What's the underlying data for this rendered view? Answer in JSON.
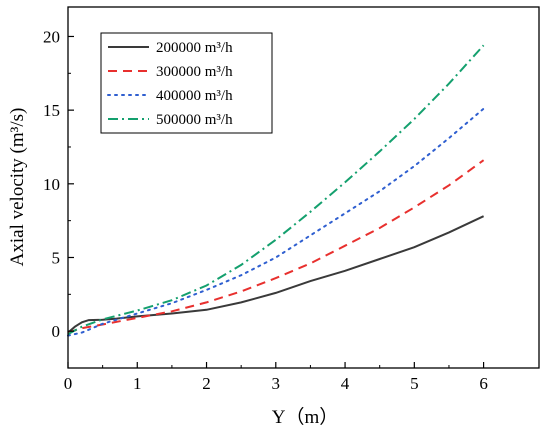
{
  "chart_data": {
    "type": "line",
    "title": "",
    "xlabel": "Y（m）",
    "ylabel": "Axial velocity (m³/s)",
    "xlim": [
      0,
      6.8
    ],
    "ylim": [
      -2.5,
      22
    ],
    "xticks": [
      "0",
      "1",
      "2",
      "3",
      "4",
      "5",
      "6"
    ],
    "yticks": [
      "0",
      "5",
      "10",
      "15",
      "20"
    ],
    "grid": false,
    "legend_position": "top-left",
    "series": [
      {
        "name": "200000 m³/h",
        "color": "#3a3a3a",
        "dash": "solid",
        "x": [
          0,
          0.1,
          0.2,
          0.3,
          0.5,
          0.7,
          1.0,
          1.5,
          2.0,
          2.5,
          3.0,
          3.5,
          4.0,
          4.5,
          5.0,
          5.5,
          6.0
        ],
        "y": [
          -0.1,
          0.3,
          0.6,
          0.75,
          0.78,
          0.85,
          1.0,
          1.2,
          1.45,
          1.95,
          2.6,
          3.4,
          4.1,
          4.9,
          5.7,
          6.7,
          7.8
        ]
      },
      {
        "name": "300000 m³/h",
        "color": "#e8302e",
        "dash": "dashed",
        "x": [
          0,
          0.2,
          0.5,
          1.0,
          1.5,
          2.0,
          2.5,
          3.0,
          3.5,
          4.0,
          4.5,
          5.0,
          5.5,
          6.0
        ],
        "y": [
          -0.1,
          0.2,
          0.45,
          0.9,
          1.35,
          1.95,
          2.7,
          3.6,
          4.6,
          5.8,
          7.0,
          8.4,
          9.9,
          11.6
        ]
      },
      {
        "name": "400000 m³/h",
        "color": "#2f5fd0",
        "dash": "dotted",
        "x": [
          0,
          0.2,
          0.5,
          1.0,
          1.5,
          2.0,
          2.5,
          3.0,
          3.5,
          4.0,
          4.5,
          5.0,
          5.5,
          6.0
        ],
        "y": [
          -0.3,
          -0.1,
          0.5,
          1.2,
          1.9,
          2.8,
          3.8,
          5.0,
          6.5,
          8.0,
          9.5,
          11.2,
          13.1,
          15.1
        ]
      },
      {
        "name": "500000 m³/h",
        "color": "#14a06e",
        "dash": "dashdot",
        "x": [
          0,
          0.2,
          0.5,
          1.0,
          1.5,
          2.0,
          2.5,
          3.0,
          3.5,
          4.0,
          4.5,
          5.0,
          5.5,
          6.0
        ],
        "y": [
          -0.2,
          0.3,
          0.8,
          1.4,
          2.1,
          3.1,
          4.5,
          6.2,
          8.1,
          10.1,
          12.2,
          14.4,
          16.8,
          19.4
        ]
      }
    ]
  }
}
